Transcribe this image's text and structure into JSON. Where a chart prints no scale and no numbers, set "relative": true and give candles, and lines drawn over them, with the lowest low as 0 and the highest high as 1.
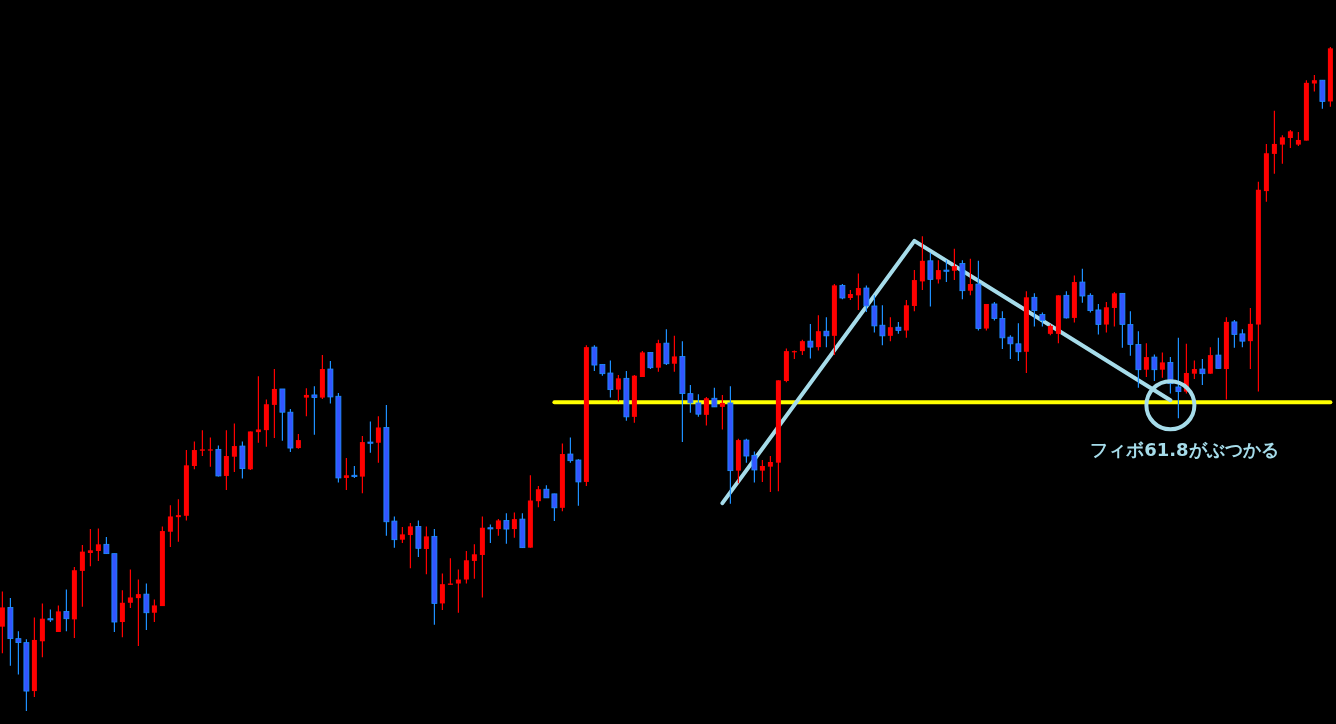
{
  "chart_data": {
    "type": "candlestick",
    "relative": true,
    "categories": [
      null,
      null,
      null,
      null,
      null,
      null,
      null,
      null,
      null,
      null,
      null,
      null,
      null,
      null,
      null,
      null,
      null,
      null,
      null,
      null,
      null,
      null,
      null,
      null,
      null,
      null,
      null,
      null,
      null,
      null,
      null,
      null,
      null,
      null,
      null,
      null,
      null,
      null,
      null,
      null,
      null,
      null,
      null,
      null,
      null,
      null,
      null,
      null,
      null,
      null,
      null,
      null,
      null,
      null,
      null,
      null,
      null,
      null,
      null,
      null,
      null,
      null,
      null,
      null,
      null,
      null,
      null,
      null,
      null,
      null,
      null,
      null,
      null,
      null,
      null,
      null,
      null,
      null,
      null,
      null,
      null,
      null,
      null,
      null,
      null,
      null,
      null,
      null,
      null,
      null,
      null,
      null,
      null,
      null,
      null,
      null,
      null,
      null,
      null,
      null,
      null,
      null,
      null,
      null,
      null,
      null,
      null,
      null,
      null,
      null,
      null,
      null,
      null,
      null,
      null,
      null,
      null,
      null,
      null,
      null,
      null,
      null,
      null,
      null,
      null,
      null,
      null,
      null,
      null,
      null,
      null,
      null,
      null,
      null,
      null,
      null,
      null,
      null,
      null,
      null,
      null,
      null,
      null,
      null,
      null,
      null,
      null,
      null,
      null,
      null,
      null,
      null,
      null,
      null,
      null,
      null,
      null,
      null,
      null,
      null,
      null,
      null,
      null,
      null,
      null,
      null,
      null
    ],
    "ohlc": [
      [
        0.127,
        0.18,
        0.087,
        0.156
      ],
      [
        0.156,
        0.17,
        0.068,
        0.109
      ],
      [
        0.109,
        0.12,
        0.055,
        0.103
      ],
      [
        0.103,
        0.108,
        0.0,
        0.03
      ],
      [
        0.03,
        0.141,
        0.021,
        0.107
      ],
      [
        0.105,
        0.162,
        0.081,
        0.139
      ],
      [
        0.139,
        0.153,
        0.134,
        0.138
      ],
      [
        0.119,
        0.159,
        0.119,
        0.15
      ],
      [
        0.15,
        0.183,
        0.12,
        0.139
      ],
      [
        0.138,
        0.217,
        0.11,
        0.212
      ],
      [
        0.211,
        0.25,
        0.157,
        0.24
      ],
      [
        0.238,
        0.274,
        0.218,
        0.242
      ],
      [
        0.241,
        0.275,
        0.226,
        0.251
      ],
      [
        0.251,
        0.262,
        0.237,
        0.237
      ],
      [
        0.237,
        0.237,
        0.119,
        0.134
      ],
      [
        0.134,
        0.182,
        0.111,
        0.163
      ],
      [
        0.163,
        0.213,
        0.155,
        0.171
      ],
      [
        0.17,
        0.198,
        0.098,
        0.176
      ],
      [
        0.176,
        0.192,
        0.122,
        0.148
      ],
      [
        0.148,
        0.168,
        0.134,
        0.159
      ],
      [
        0.158,
        0.278,
        0.158,
        0.271
      ],
      [
        0.27,
        0.31,
        0.247,
        0.293
      ],
      [
        0.292,
        0.319,
        0.255,
        0.295
      ],
      [
        0.294,
        0.393,
        0.287,
        0.37
      ],
      [
        0.369,
        0.406,
        0.364,
        0.393
      ],
      [
        0.392,
        0.423,
        0.384,
        0.394
      ],
      [
        0.393,
        0.412,
        0.368,
        0.394
      ],
      [
        0.394,
        0.4,
        0.353,
        0.354
      ],
      [
        0.354,
        0.423,
        0.333,
        0.384
      ],
      [
        0.383,
        0.433,
        0.36,
        0.399
      ],
      [
        0.399,
        0.406,
        0.35,
        0.365
      ],
      [
        0.364,
        0.421,
        0.363,
        0.421
      ],
      [
        0.42,
        0.504,
        0.404,
        0.424
      ],
      [
        0.423,
        0.469,
        0.398,
        0.462
      ],
      [
        0.461,
        0.515,
        0.411,
        0.485
      ],
      [
        0.485,
        0.485,
        0.407,
        0.45
      ],
      [
        0.45,
        0.455,
        0.39,
        0.396
      ],
      [
        0.396,
        0.417,
        0.395,
        0.408
      ],
      [
        0.472,
        0.486,
        0.444,
        0.476
      ],
      [
        0.476,
        0.489,
        0.416,
        0.472
      ],
      [
        0.472,
        0.536,
        0.47,
        0.515
      ],
      [
        0.515,
        0.527,
        0.463,
        0.473
      ],
      [
        0.474,
        0.479,
        0.344,
        0.351
      ],
      [
        0.351,
        0.381,
        0.333,
        0.355
      ],
      [
        0.355,
        0.369,
        0.351,
        0.353
      ],
      [
        0.353,
        0.414,
        0.328,
        0.405
      ],
      [
        0.405,
        0.436,
        0.389,
        0.404
      ],
      [
        0.404,
        0.444,
        0.374,
        0.427
      ],
      [
        0.427,
        0.461,
        0.264,
        0.285
      ],
      [
        0.286,
        0.293,
        0.246,
        0.258
      ],
      [
        0.258,
        0.277,
        0.253,
        0.266
      ],
      [
        0.265,
        0.283,
        0.215,
        0.278
      ],
      [
        0.278,
        0.287,
        0.232,
        0.245
      ],
      [
        0.244,
        0.278,
        0.206,
        0.263
      ],
      [
        0.263,
        0.274,
        0.13,
        0.162
      ],
      [
        0.162,
        0.207,
        0.152,
        0.191
      ],
      [
        0.19,
        0.23,
        0.19,
        0.192
      ],
      [
        0.192,
        0.213,
        0.148,
        0.198
      ],
      [
        0.198,
        0.241,
        0.192,
        0.227
      ],
      [
        0.226,
        0.251,
        0.199,
        0.236
      ],
      [
        0.235,
        0.293,
        0.171,
        0.276
      ],
      [
        0.276,
        0.281,
        0.253,
        0.275
      ],
      [
        0.274,
        0.289,
        0.264,
        0.287
      ],
      [
        0.287,
        0.298,
        0.252,
        0.274
      ],
      [
        0.274,
        0.299,
        0.261,
        0.289
      ],
      [
        0.289,
        0.298,
        0.246,
        0.246
      ],
      [
        0.246,
        0.355,
        0.246,
        0.317
      ],
      [
        0.316,
        0.339,
        0.307,
        0.334
      ],
      [
        0.334,
        0.34,
        0.321,
        0.321
      ],
      [
        0.327,
        0.327,
        0.286,
        0.306
      ],
      [
        0.306,
        0.403,
        0.301,
        0.387
      ],
      [
        0.387,
        0.412,
        0.374,
        0.377
      ],
      [
        0.378,
        0.379,
        0.309,
        0.345
      ],
      [
        0.345,
        0.551,
        0.339,
        0.548
      ],
      [
        0.548,
        0.551,
        0.512,
        0.521
      ],
      [
        0.522,
        0.522,
        0.505,
        0.508
      ],
      [
        0.509,
        0.528,
        0.472,
        0.484
      ],
      [
        0.484,
        0.506,
        0.466,
        0.501
      ],
      [
        0.501,
        0.512,
        0.437,
        0.443
      ],
      [
        0.443,
        0.506,
        0.434,
        0.505
      ],
      [
        0.503,
        0.542,
        0.503,
        0.54
      ],
      [
        0.54,
        0.54,
        0.515,
        0.517
      ],
      [
        0.517,
        0.559,
        0.511,
        0.554
      ],
      [
        0.554,
        0.575,
        0.521,
        0.523
      ],
      [
        0.523,
        0.565,
        0.511,
        0.534
      ],
      [
        0.534,
        0.557,
        0.405,
        0.478
      ],
      [
        0.478,
        0.491,
        0.449,
        0.464
      ],
      [
        0.464,
        0.477,
        0.443,
        0.447
      ],
      [
        0.446,
        0.473,
        0.43,
        0.471
      ],
      [
        0.471,
        0.487,
        0.458,
        0.458
      ],
      [
        0.458,
        0.476,
        0.424,
        0.464
      ],
      [
        0.464,
        0.489,
        0.312,
        0.362
      ],
      [
        0.362,
        0.41,
        0.343,
        0.408
      ],
      [
        0.408,
        0.41,
        0.374,
        0.384
      ],
      [
        0.385,
        0.391,
        0.344,
        0.363
      ],
      [
        0.362,
        0.378,
        0.345,
        0.369
      ],
      [
        0.368,
        0.384,
        0.33,
        0.375
      ],
      [
        0.374,
        0.498,
        0.331,
        0.498
      ],
      [
        0.497,
        0.546,
        0.495,
        0.542
      ],
      [
        0.541,
        0.543,
        0.53,
        0.542
      ],
      [
        0.542,
        0.559,
        0.536,
        0.557
      ],
      [
        0.557,
        0.583,
        0.531,
        0.548
      ],
      [
        0.548,
        0.596,
        0.543,
        0.572
      ],
      [
        0.572,
        0.593,
        0.548,
        0.565
      ],
      [
        0.565,
        0.643,
        0.536,
        0.641
      ],
      [
        0.641,
        0.643,
        0.62,
        0.622
      ],
      [
        0.622,
        0.634,
        0.619,
        0.628
      ],
      [
        0.626,
        0.659,
        0.604,
        0.637
      ],
      [
        0.637,
        0.641,
        0.601,
        0.61
      ],
      [
        0.61,
        0.626,
        0.57,
        0.58
      ],
      [
        0.581,
        0.611,
        0.551,
        0.565
      ],
      [
        0.565,
        0.593,
        0.557,
        0.578
      ],
      [
        0.578,
        0.586,
        0.568,
        0.573
      ],
      [
        0.573,
        0.619,
        0.562,
        0.611
      ],
      [
        0.61,
        0.664,
        0.602,
        0.649
      ],
      [
        0.647,
        0.715,
        0.634,
        0.678
      ],
      [
        0.678,
        0.69,
        0.609,
        0.65
      ],
      [
        0.65,
        0.679,
        0.644,
        0.664
      ],
      [
        0.664,
        0.679,
        0.646,
        0.663
      ],
      [
        0.663,
        0.696,
        0.649,
        0.67
      ],
      [
        0.674,
        0.679,
        0.62,
        0.633
      ],
      [
        0.633,
        0.681,
        0.626,
        0.643
      ],
      [
        0.643,
        0.678,
        0.573,
        0.576
      ],
      [
        0.576,
        0.613,
        0.573,
        0.613
      ],
      [
        0.613,
        0.616,
        0.588,
        0.591
      ],
      [
        0.591,
        0.602,
        0.545,
        0.562
      ],
      [
        0.563,
        0.566,
        0.53,
        0.553
      ],
      [
        0.553,
        0.584,
        0.527,
        0.541
      ],
      [
        0.541,
        0.632,
        0.509,
        0.623
      ],
      [
        0.623,
        0.629,
        0.579,
        0.603
      ],
      [
        0.597,
        0.6,
        0.579,
        0.588
      ],
      [
        0.568,
        0.582,
        0.566,
        0.58
      ],
      [
        0.568,
        0.626,
        0.554,
        0.626
      ],
      [
        0.626,
        0.632,
        0.591,
        0.592
      ],
      [
        0.592,
        0.656,
        0.585,
        0.646
      ],
      [
        0.646,
        0.666,
        0.615,
        0.625
      ],
      [
        0.626,
        0.629,
        0.6,
        0.603
      ],
      [
        0.604,
        0.613,
        0.567,
        0.582
      ],
      [
        0.582,
        0.616,
        0.57,
        0.608
      ],
      [
        0.607,
        0.631,
        0.579,
        0.629
      ],
      [
        0.629,
        0.629,
        0.547,
        0.582
      ],
      [
        0.582,
        0.602,
        0.535,
        0.552
      ],
      [
        0.552,
        0.572,
        0.487,
        0.514
      ],
      [
        0.514,
        0.554,
        0.503,
        0.533
      ],
      [
        0.533,
        0.537,
        0.497,
        0.514
      ],
      [
        0.514,
        0.54,
        0.502,
        0.525
      ],
      [
        0.525,
        0.533,
        0.478,
        0.493
      ],
      [
        0.488,
        0.562,
        0.441,
        0.481
      ],
      [
        0.481,
        0.553,
        0.478,
        0.509
      ],
      [
        0.508,
        0.528,
        0.5,
        0.515
      ],
      [
        0.515,
        0.53,
        0.491,
        0.508
      ],
      [
        0.508,
        0.548,
        0.508,
        0.536
      ],
      [
        0.536,
        0.562,
        0.516,
        0.516
      ],
      [
        0.515,
        0.593,
        0.469,
        0.586
      ],
      [
        0.586,
        0.589,
        0.547,
        0.567
      ],
      [
        0.568,
        0.575,
        0.548,
        0.557
      ],
      [
        0.557,
        0.607,
        0.515,
        0.583
      ],
      [
        0.582,
        0.797,
        0.481,
        0.785
      ],
      [
        0.783,
        0.854,
        0.767,
        0.84
      ],
      [
        0.839,
        0.904,
        0.809,
        0.854
      ],
      [
        0.853,
        0.867,
        0.824,
        0.864
      ],
      [
        0.863,
        0.875,
        0.848,
        0.873
      ],
      [
        0.853,
        0.872,
        0.851,
        0.86
      ],
      [
        0.859,
        0.95,
        0.859,
        0.946
      ],
      [
        0.945,
        0.958,
        0.933,
        0.95
      ],
      [
        0.95,
        0.95,
        0.907,
        0.918
      ],
      [
        0.918,
        1.0,
        0.91,
        0.998
      ]
    ],
    "series": [
      {
        "type": "line",
        "color": "#ffff00",
        "values": [
          null,
          null,
          null,
          null,
          null,
          null,
          null,
          null,
          null,
          null,
          null,
          null,
          null,
          null,
          null,
          null,
          null,
          null,
          null,
          null,
          null,
          null,
          null,
          null,
          null,
          null,
          null,
          null,
          null,
          null,
          null,
          null,
          null,
          null,
          null,
          null,
          null,
          null,
          null,
          null,
          null,
          null,
          null,
          null,
          null,
          null,
          null,
          null,
          null,
          null,
          null,
          null,
          null,
          null,
          null,
          null,
          null,
          null,
          null,
          null,
          null,
          null,
          null,
          null,
          null,
          null,
          null,
          null,
          null,
          0.465,
          null,
          null,
          null,
          null,
          null,
          null,
          null,
          null,
          null,
          null,
          null,
          null,
          null,
          null,
          null,
          null,
          null,
          null,
          null,
          null,
          null,
          null,
          null,
          null,
          null,
          null,
          null,
          null,
          null,
          null,
          null,
          null,
          null,
          null,
          null,
          null,
          null,
          null,
          null,
          null,
          null,
          null,
          null,
          null,
          null,
          null,
          null,
          null,
          null,
          null,
          null,
          null,
          null,
          null,
          null,
          null,
          null,
          null,
          null,
          null,
          null,
          null,
          null,
          null,
          null,
          null,
          null,
          null,
          null,
          null,
          null,
          null,
          null,
          null,
          null,
          null,
          null,
          null,
          null,
          null,
          null,
          null,
          null,
          null,
          null,
          null,
          null,
          null,
          null,
          null,
          null,
          null,
          null,
          null,
          null,
          null,
          0.465
        ]
      },
      {
        "type": "line",
        "color": "#a6dcea",
        "values": [
          null,
          null,
          null,
          null,
          null,
          null,
          null,
          null,
          null,
          null,
          null,
          null,
          null,
          null,
          null,
          null,
          null,
          null,
          null,
          null,
          null,
          null,
          null,
          null,
          null,
          null,
          null,
          null,
          null,
          null,
          null,
          null,
          null,
          null,
          null,
          null,
          null,
          null,
          null,
          null,
          null,
          null,
          null,
          null,
          null,
          null,
          null,
          null,
          null,
          null,
          null,
          null,
          null,
          null,
          null,
          null,
          null,
          null,
          null,
          null,
          null,
          null,
          null,
          null,
          null,
          null,
          null,
          null,
          null,
          null,
          null,
          null,
          null,
          null,
          null,
          null,
          null,
          null,
          null,
          null,
          null,
          null,
          null,
          null,
          null,
          null,
          null,
          null,
          null,
          null,
          0.313,
          null,
          null,
          null,
          null,
          null,
          null,
          null,
          null,
          null,
          null,
          null,
          null,
          null,
          null,
          null,
          null,
          null,
          null,
          null,
          null,
          null,
          null,
          null,
          0.708,
          null,
          null,
          null,
          null,
          null,
          null,
          null,
          null,
          null,
          null,
          null,
          null,
          null,
          null,
          null,
          null,
          null,
          null,
          null,
          null,
          null,
          null,
          null,
          null,
          null,
          null,
          null,
          null,
          null,
          null,
          null,
          0.468,
          null,
          null,
          null,
          null,
          null,
          null,
          null,
          null,
          null,
          null,
          null,
          null,
          null,
          null,
          null,
          null,
          null,
          null,
          null,
          null
        ]
      }
    ],
    "annotations": [
      "フィボ61.8がぶつかる"
    ]
  }
}
